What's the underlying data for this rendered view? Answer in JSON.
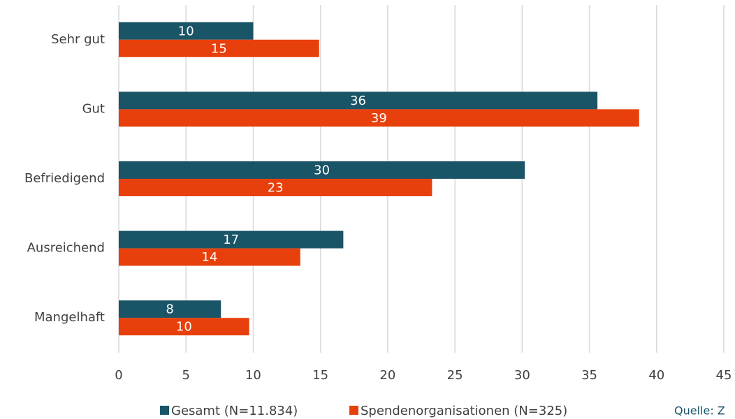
{
  "chart_data": {
    "type": "barh",
    "categories": [
      "Sehr gut",
      "Gut",
      "Befriedigend",
      "Ausreichend",
      "Mangelhaft"
    ],
    "series": [
      {
        "name": "Gesamt (N=11.834)",
        "color": "#1a5467",
        "values": [
          10,
          35.6,
          30.2,
          16.7,
          7.6
        ],
        "value_labels": [
          "10",
          "36",
          "30",
          "17",
          "8"
        ]
      },
      {
        "name": "Spendenorganisationen (N=325)",
        "color": "#e8400c",
        "values": [
          14.9,
          38.7,
          23.3,
          13.5,
          9.7
        ],
        "value_labels": [
          "15",
          "39",
          "23",
          "14",
          "10"
        ]
      }
    ],
    "xlim": [
      0,
      45
    ],
    "xticks": [
      0,
      5,
      10,
      15,
      20,
      25,
      30,
      35,
      40,
      45
    ],
    "grid": true,
    "legend": "bottom",
    "annotation": "Quelle: Z"
  }
}
